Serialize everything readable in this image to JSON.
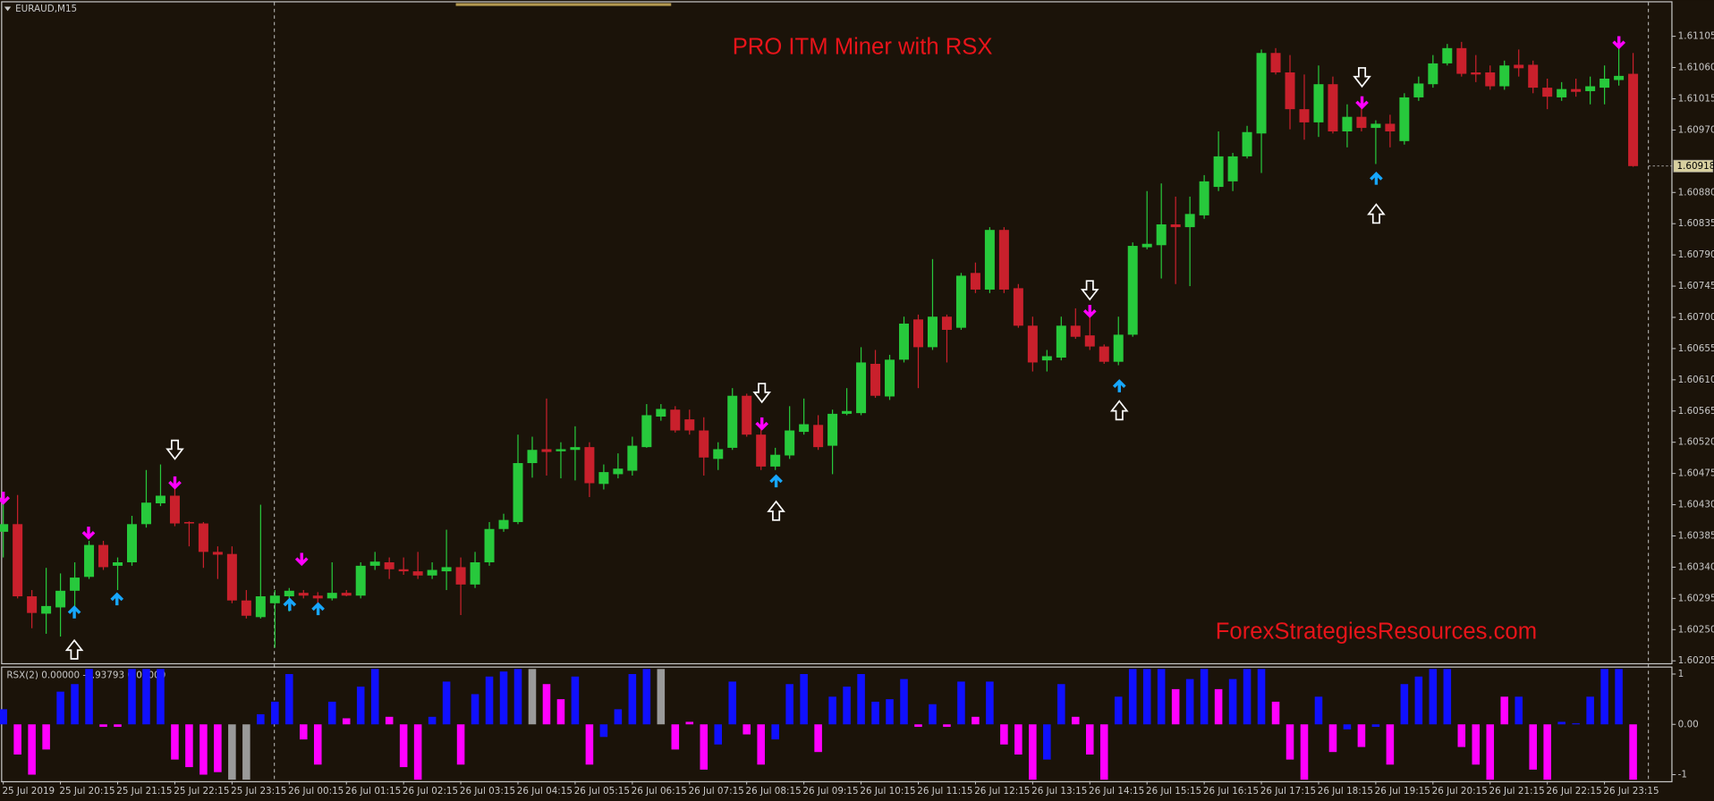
{
  "chart_data": {
    "type": "candlestick",
    "symbol": "EURAUD,M15",
    "title": "PRO ITM Miner with RSX",
    "watermark": "ForexStrategiesResources.com",
    "categories": [
      "25 Jul 2019",
      null,
      null,
      null,
      "25 Jul 20:15",
      null,
      null,
      null,
      "25 Jul 21:15",
      null,
      null,
      null,
      "25 Jul 22:15",
      null,
      null,
      null,
      "25 Jul 23:15",
      null,
      null,
      null,
      "26 Jul 00:15",
      null,
      null,
      null,
      "26 Jul 01:15",
      null,
      null,
      null,
      "26 Jul 02:15",
      null,
      null,
      null,
      "26 Jul 03:15",
      null,
      null,
      null,
      "26 Jul 04:15",
      null,
      null,
      null,
      "26 Jul 05:15",
      null,
      null,
      null,
      "26 Jul 06:15",
      null,
      null,
      null,
      "26 Jul 07:15",
      null,
      null,
      null,
      "26 Jul 08:15",
      null,
      null,
      null,
      "26 Jul 09:15",
      null,
      null,
      null,
      "26 Jul 10:15",
      null,
      null,
      null,
      "26 Jul 11:15",
      null,
      null,
      null,
      "26 Jul 12:15",
      null,
      null,
      null,
      "26 Jul 13:15",
      null,
      null,
      null,
      "26 Jul 14:15",
      null,
      null,
      null,
      "26 Jul 15:15",
      null,
      null,
      null,
      "26 Jul 16:15",
      null,
      null,
      null,
      "26 Jul 17:15",
      null,
      null,
      null,
      "26 Jul 18:15",
      null,
      null,
      null,
      "26 Jul 19:15",
      null,
      null,
      null,
      "26 Jul 20:15",
      null,
      null,
      null,
      "26 Jul 21:15",
      null,
      null,
      null,
      "26 Jul 22:15",
      null,
      null,
      null,
      "26 Jul 23:15",
      null,
      null
    ],
    "open": [
      1.60391,
      1.60402,
      1.60298,
      1.60273,
      1.60282,
      1.60306,
      1.60326,
      1.60372,
      1.60342,
      1.60347,
      1.60402,
      1.60432,
      1.60443,
      1.60405,
      1.60403,
      1.60362,
      1.60359,
      1.60292,
      1.60268,
      1.60288,
      1.60298,
      1.60303,
      1.60299,
      1.60295,
      1.60303,
      1.60299,
      1.60342,
      1.60347,
      1.60337,
      1.60334,
      1.60328,
      1.60334,
      1.6034,
      1.60315,
      1.60347,
      1.60395,
      1.60405,
      1.6049,
      1.6051,
      1.60507,
      1.60509,
      1.60513,
      1.6046,
      1.60474,
      1.60479,
      1.60513,
      1.60557,
      1.60567,
      1.60553,
      1.60537,
      1.60496,
      1.60512,
      1.60587,
      1.60531,
      1.60485,
      1.60501,
      1.60535,
      1.60545,
      1.60515,
      1.60561,
      1.60562,
      1.60633,
      1.60586,
      1.60639,
      1.60697,
      1.60657,
      1.60701,
      1.60685,
      1.60764,
      1.6074,
      1.60826,
      1.60742,
      1.60688,
      1.60638,
      1.60642,
      1.60688,
      1.60674,
      1.60658,
      1.60636,
      1.60675,
      1.60801,
      1.60804,
      1.60834,
      1.6083,
      1.60847,
      1.60888,
      1.60896,
      1.60932,
      1.60965,
      1.61081,
      1.61053,
      1.61,
      1.60981,
      1.61036,
      1.60968,
      1.60989,
      1.60973,
      1.60979,
      1.60954,
      1.61017,
      1.61036,
      1.61066,
      1.61088,
      1.61053,
      1.61053,
      1.61033,
      1.61064,
      1.61064,
      1.61031,
      1.61017,
      1.61029,
      1.61026,
      1.61031,
      1.61042,
      1.61051
    ],
    "high": [
      1.60441,
      1.60444,
      1.60307,
      1.60339,
      1.60331,
      1.60347,
      1.60378,
      1.60378,
      1.60354,
      1.60414,
      1.6048,
      1.60488,
      1.60465,
      1.60406,
      1.60405,
      1.6037,
      1.6037,
      1.60307,
      1.6043,
      1.60307,
      1.6031,
      1.60307,
      1.60304,
      1.60347,
      1.60307,
      1.60347,
      1.60362,
      1.60354,
      1.60354,
      1.60362,
      1.60347,
      1.60394,
      1.60354,
      1.60362,
      1.60405,
      1.60417,
      1.60531,
      1.60528,
      1.60583,
      1.6052,
      1.60543,
      1.6052,
      1.60488,
      1.60504,
      1.60528,
      1.60575,
      1.60575,
      1.60572,
      1.60567,
      1.60556,
      1.6052,
      1.60598,
      1.6059,
      1.60551,
      1.60512,
      1.60572,
      1.60583,
      1.60559,
      1.60567,
      1.60598,
      1.60657,
      1.60653,
      1.60646,
      1.60701,
      1.60704,
      1.60784,
      1.60704,
      1.60764,
      1.60779,
      1.6083,
      1.6083,
      1.60748,
      1.60701,
      1.60653,
      1.60701,
      1.60713,
      1.60701,
      1.60661,
      1.60701,
      1.60808,
      1.60882,
      1.60893,
      1.60874,
      1.60874,
      1.60905,
      1.60968,
      1.60937,
      1.60976,
      1.61086,
      1.61088,
      1.61078,
      1.6105,
      1.61063,
      1.61047,
      1.61007,
      1.61007,
      1.60984,
      1.60992,
      1.61023,
      1.61047,
      1.61078,
      1.61094,
      1.61097,
      1.61078,
      1.61063,
      1.6107,
      1.61086,
      1.6107,
      1.61044,
      1.61039,
      1.61044,
      1.61047,
      1.61063,
      1.61094,
      1.61081
    ],
    "low": [
      1.60354,
      1.60295,
      1.60252,
      1.60244,
      1.6024,
      1.60276,
      1.60323,
      1.60336,
      1.60307,
      1.60342,
      1.60397,
      1.60428,
      1.60399,
      1.6037,
      1.60339,
      1.60323,
      1.60288,
      1.60266,
      1.60266,
      1.60224,
      1.60276,
      1.60295,
      1.60288,
      1.60292,
      1.60298,
      1.60295,
      1.60336,
      1.60323,
      1.60329,
      1.60323,
      1.60323,
      1.60307,
      1.60271,
      1.6031,
      1.60342,
      1.60391,
      1.60402,
      1.60469,
      1.60472,
      1.60468,
      1.60465,
      1.60441,
      1.60452,
      1.60468,
      1.60472,
      1.60512,
      1.60551,
      1.60534,
      1.60531,
      1.60472,
      1.6048,
      1.60509,
      1.60528,
      1.6048,
      1.6048,
      1.60496,
      1.60531,
      1.60509,
      1.60474,
      1.60559,
      1.60559,
      1.60584,
      1.60581,
      1.60635,
      1.60598,
      1.60653,
      1.60635,
      1.60682,
      1.60735,
      1.60735,
      1.60735,
      1.60685,
      1.60622,
      1.60622,
      1.60638,
      1.60669,
      1.60653,
      1.60633,
      1.60631,
      1.60672,
      1.60798,
      1.60756,
      1.60748,
      1.60745,
      1.60842,
      1.60882,
      1.60882,
      1.60929,
      1.60908,
      1.6105,
      1.60971,
      1.60956,
      1.6096,
      1.60965,
      1.60945,
      1.60968,
      1.60921,
      1.60945,
      1.60949,
      1.61012,
      1.61031,
      1.61063,
      1.61047,
      1.61039,
      1.61028,
      1.61028,
      1.61047,
      1.61023,
      1.61,
      1.61012,
      1.61018,
      1.61007,
      1.61007,
      1.61034,
      1.60917
    ],
    "close": [
      1.60402,
      1.60298,
      1.60274,
      1.60284,
      1.60306,
      1.60325,
      1.60372,
      1.6034,
      1.60347,
      1.60402,
      1.60433,
      1.60443,
      1.60403,
      1.60403,
      1.60362,
      1.60358,
      1.60292,
      1.6027,
      1.60298,
      1.60299,
      1.60306,
      1.60299,
      1.60295,
      1.60303,
      1.60299,
      1.60342,
      1.60348,
      1.60337,
      1.60334,
      1.60328,
      1.60336,
      1.6034,
      1.60315,
      1.60347,
      1.60395,
      1.60408,
      1.6049,
      1.60509,
      1.60506,
      1.6051,
      1.60513,
      1.60461,
      1.60477,
      1.60482,
      1.60515,
      1.60559,
      1.60568,
      1.60537,
      1.60537,
      1.60498,
      1.6051,
      1.60587,
      1.60531,
      1.60485,
      1.60502,
      1.60537,
      1.60546,
      1.60513,
      1.60561,
      1.60565,
      1.60635,
      1.60587,
      1.60639,
      1.60691,
      1.60657,
      1.60701,
      1.60682,
      1.6076,
      1.6074,
      1.60826,
      1.6074,
      1.60688,
      1.60635,
      1.60644,
      1.60688,
      1.60672,
      1.60658,
      1.60636,
      1.60675,
      1.60803,
      1.60806,
      1.60834,
      1.6083,
      1.60849,
      1.60896,
      1.60932,
      1.60932,
      1.60967,
      1.61081,
      1.61053,
      1.61,
      1.60981,
      1.61036,
      1.60968,
      1.60989,
      1.60973,
      1.60979,
      1.60968,
      1.61017,
      1.61037,
      1.61066,
      1.61088,
      1.61051,
      1.6105,
      1.61033,
      1.61063,
      1.61059,
      1.61031,
      1.61018,
      1.61029,
      1.61025,
      1.61033,
      1.61044,
      1.61048,
      1.60918
    ],
    "up_color": "#27c93c",
    "down_color": "#c9202c",
    "ylim": [
      1.602,
      1.61154
    ],
    "yticks": [
      1.61105,
      {
        "value": 1.6106,
        "label": "1.61060"
      },
      1.61015,
      {
        "value": 1.6097,
        "label": "1.60970"
      },
      {
        "value": 1.6088,
        "label": "1.60880"
      },
      1.60835,
      {
        "value": 1.6079,
        "label": "1.60790"
      },
      1.60745,
      {
        "value": 1.607,
        "label": "1.60700"
      },
      1.60655,
      {
        "value": 1.6061,
        "label": "1.60610"
      },
      1.60565,
      {
        "value": 1.6052,
        "label": "1.60520"
      },
      1.60475,
      {
        "value": 1.6043,
        "label": "1.60430"
      },
      1.60385,
      {
        "value": 1.6034,
        "label": "1.60340"
      },
      1.60295,
      {
        "value": 1.6025,
        "label": "1.60250"
      },
      1.60205
    ],
    "last_price": 1.60918,
    "indicator": {
      "type": "bar",
      "label": "RSX(2) 0.00000 -0.93793 0.00000",
      "values": [
        0.3,
        -0.6,
        -1.0,
        -0.5,
        0.65,
        0.8,
        1.1,
        -0.05,
        -0.05,
        1.1,
        1.1,
        1.1,
        -0.7,
        -0.85,
        -1.0,
        -0.95,
        -1.1,
        -1.1,
        0.2,
        0.45,
        1.0,
        -0.3,
        -0.8,
        0.45,
        0.12,
        0.75,
        1.1,
        0.15,
        -0.85,
        -1.1,
        0.15,
        0.85,
        -0.8,
        0.6,
        0.95,
        1.05,
        1.1,
        1.1,
        0.8,
        0.5,
        0.95,
        -0.8,
        -0.25,
        0.3,
        1.0,
        1.1,
        1.1,
        -0.5,
        0.05,
        -0.9,
        -0.4,
        0.85,
        -0.2,
        -0.8,
        -0.3,
        0.8,
        1.0,
        -0.55,
        0.55,
        0.75,
        1.0,
        0.45,
        0.5,
        0.9,
        -0.05,
        0.4,
        -0.05,
        0.85,
        0.15,
        0.85,
        -0.4,
        -0.6,
        -1.1,
        -0.7,
        0.8,
        0.15,
        -0.6,
        -1.1,
        0.55,
        1.1,
        1.1,
        1.1,
        0.7,
        0.9,
        1.1,
        0.7,
        0.9,
        1.1,
        1.1,
        0.45,
        -0.7,
        -1.1,
        0.55,
        -0.55,
        -0.1,
        -0.45,
        -0.05,
        -0.8,
        0.8,
        0.95,
        1.1,
        1.1,
        -0.45,
        -0.8,
        -1.1,
        0.55,
        0.55,
        -0.9,
        -1.1,
        0.05,
        0.02,
        0.55,
        1.1,
        1.1,
        -1.1
      ],
      "colors": [
        "#1010ff",
        "#ff00ff",
        "#ff00ff",
        "#ff00ff",
        "#1010ff",
        "#1010ff",
        "#1010ff",
        "#ff00ff",
        "#ff00ff",
        "#1010ff",
        "#1010ff",
        "#1010ff",
        "#ff00ff",
        "#ff00ff",
        "#ff00ff",
        "#ff00ff",
        "#9a9a9a",
        "#9a9a9a",
        "#1010ff",
        "#1010ff",
        "#1010ff",
        "#ff00ff",
        "#ff00ff",
        "#1010ff",
        "#ff00ff",
        "#1010ff",
        "#1010ff",
        "#ff00ff",
        "#ff00ff",
        "#ff00ff",
        "#1010ff",
        "#1010ff",
        "#ff00ff",
        "#1010ff",
        "#1010ff",
        "#1010ff",
        "#1010ff",
        "#9a9a9a",
        "#ff00ff",
        "#ff00ff",
        "#1010ff",
        "#ff00ff",
        "#1010ff",
        "#1010ff",
        "#1010ff",
        "#1010ff",
        "#9a9a9a",
        "#ff00ff",
        "#ff00ff",
        "#ff00ff",
        "#1010ff",
        "#1010ff",
        "#ff00ff",
        "#ff00ff",
        "#1010ff",
        "#1010ff",
        "#1010ff",
        "#ff00ff",
        "#1010ff",
        "#1010ff",
        "#1010ff",
        "#1010ff",
        "#1010ff",
        "#1010ff",
        "#ff00ff",
        "#1010ff",
        "#ff00ff",
        "#1010ff",
        "#ff00ff",
        "#1010ff",
        "#ff00ff",
        "#ff00ff",
        "#ff00ff",
        "#1010ff",
        "#1010ff",
        "#ff00ff",
        "#ff00ff",
        "#ff00ff",
        "#1010ff",
        "#1010ff",
        "#1010ff",
        "#1010ff",
        "#ff00ff",
        "#1010ff",
        "#1010ff",
        "#ff00ff",
        "#1010ff",
        "#1010ff",
        "#1010ff",
        "#ff00ff",
        "#ff00ff",
        "#ff00ff",
        "#1010ff",
        "#ff00ff",
        "#1010ff",
        "#ff00ff",
        "#1010ff",
        "#ff00ff",
        "#1010ff",
        "#1010ff",
        "#1010ff",
        "#1010ff",
        "#ff00ff",
        "#ff00ff",
        "#ff00ff",
        "#ff00ff",
        "#1010ff",
        "#ff00ff",
        "#ff00ff",
        "#1010ff",
        "#1010ff",
        "#1010ff",
        "#1010ff",
        "#1010ff",
        "#ff00ff"
      ],
      "ylim": [
        -1.13,
        1.15
      ],
      "yticks": [
        1,
        {
          "value": 0,
          "label": "0.00"
        },
        -1
      ]
    }
  }
}
